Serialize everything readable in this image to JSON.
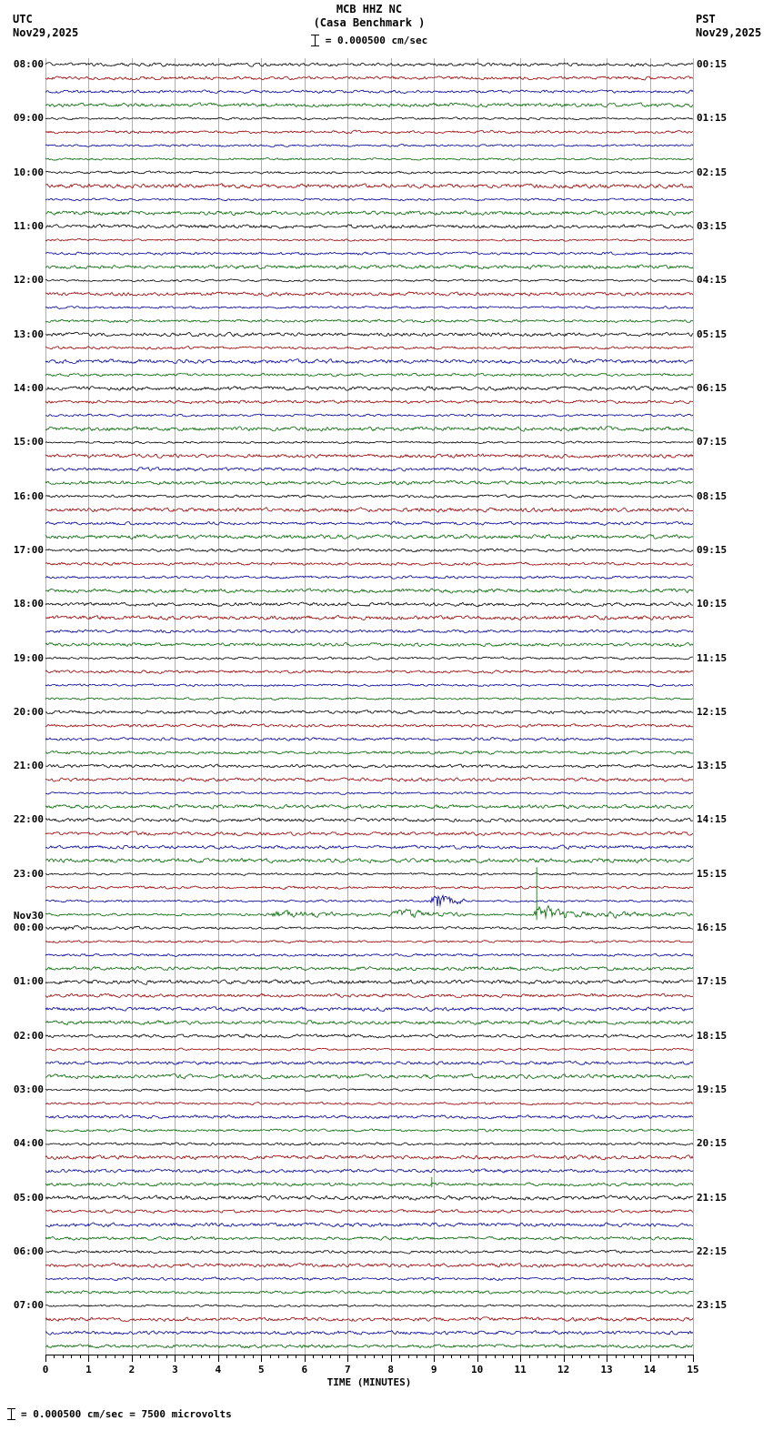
{
  "header": {
    "title": "MCB HHZ NC",
    "subtitle": "(Casa Benchmark )",
    "utc_label": "UTC",
    "utc_date": "Nov29,2025",
    "pst_label": "PST",
    "pst_date": "Nov29,2025",
    "scale_label": "= 0.000500 cm/sec"
  },
  "footer": {
    "scale_label": "= 0.000500 cm/sec =    7500 microvolts"
  },
  "chart_data": {
    "type": "line",
    "subtype": "helicorder",
    "station": "MCB HHZ NC",
    "station_name": "Casa Benchmark",
    "timezone_left": "UTC",
    "timezone_right": "PST",
    "date": "Nov29,2025",
    "minutes_per_line": 15,
    "lines_per_hour": 4,
    "num_rows": 96,
    "x_range": [
      0,
      15
    ],
    "xlabel": "TIME (MINUTES)",
    "x_ticks": [
      "0",
      "1",
      "2",
      "3",
      "4",
      "5",
      "6",
      "7",
      "8",
      "9",
      "10",
      "11",
      "12",
      "13",
      "14",
      "15"
    ],
    "grid": true,
    "grid_color": "#7a7a7a",
    "trace_color_cycle": [
      "#000000",
      "#990000",
      "#000099",
      "#006600"
    ],
    "left_labels": [
      {
        "row": 0,
        "lines": [
          "08:00"
        ]
      },
      {
        "row": 4,
        "lines": [
          "09:00"
        ]
      },
      {
        "row": 8,
        "lines": [
          "10:00"
        ]
      },
      {
        "row": 12,
        "lines": [
          "11:00"
        ]
      },
      {
        "row": 16,
        "lines": [
          "12:00"
        ]
      },
      {
        "row": 20,
        "lines": [
          "13:00"
        ]
      },
      {
        "row": 24,
        "lines": [
          "14:00"
        ]
      },
      {
        "row": 28,
        "lines": [
          "15:00"
        ]
      },
      {
        "row": 32,
        "lines": [
          "16:00"
        ]
      },
      {
        "row": 36,
        "lines": [
          "17:00"
        ]
      },
      {
        "row": 40,
        "lines": [
          "18:00"
        ]
      },
      {
        "row": 44,
        "lines": [
          "19:00"
        ]
      },
      {
        "row": 48,
        "lines": [
          "20:00"
        ]
      },
      {
        "row": 52,
        "lines": [
          "21:00"
        ]
      },
      {
        "row": 56,
        "lines": [
          "22:00"
        ]
      },
      {
        "row": 60,
        "lines": [
          "23:00"
        ]
      },
      {
        "row": 64,
        "lines": [
          "Nov30",
          "00:00"
        ]
      },
      {
        "row": 68,
        "lines": [
          "01:00"
        ]
      },
      {
        "row": 72,
        "lines": [
          "02:00"
        ]
      },
      {
        "row": 76,
        "lines": [
          "03:00"
        ]
      },
      {
        "row": 80,
        "lines": [
          "04:00"
        ]
      },
      {
        "row": 84,
        "lines": [
          "05:00"
        ]
      },
      {
        "row": 88,
        "lines": [
          "06:00"
        ]
      },
      {
        "row": 92,
        "lines": [
          "07:00"
        ]
      }
    ],
    "right_labels": [
      {
        "row": 0,
        "text": "00:15"
      },
      {
        "row": 4,
        "text": "01:15"
      },
      {
        "row": 8,
        "text": "02:15"
      },
      {
        "row": 12,
        "text": "03:15"
      },
      {
        "row": 16,
        "text": "04:15"
      },
      {
        "row": 20,
        "text": "05:15"
      },
      {
        "row": 24,
        "text": "06:15"
      },
      {
        "row": 28,
        "text": "07:15"
      },
      {
        "row": 32,
        "text": "08:15"
      },
      {
        "row": 36,
        "text": "09:15"
      },
      {
        "row": 40,
        "text": "10:15"
      },
      {
        "row": 44,
        "text": "11:15"
      },
      {
        "row": 48,
        "text": "12:15"
      },
      {
        "row": 52,
        "text": "13:15"
      },
      {
        "row": 56,
        "text": "14:15"
      },
      {
        "row": 60,
        "text": "15:15"
      },
      {
        "row": 64,
        "text": "16:15"
      },
      {
        "row": 68,
        "text": "17:15"
      },
      {
        "row": 72,
        "text": "18:15"
      },
      {
        "row": 76,
        "text": "19:15"
      },
      {
        "row": 80,
        "text": "20:15"
      },
      {
        "row": 84,
        "text": "21:15"
      },
      {
        "row": 88,
        "text": "22:15"
      },
      {
        "row": 92,
        "text": "23:15"
      }
    ],
    "events": [
      {
        "row": 62,
        "type": "burst",
        "start": 8.9,
        "end": 9.7,
        "amp": 9,
        "note": "blue burst ~23:39 UTC"
      },
      {
        "row": 63,
        "type": "burst",
        "start": 5.0,
        "end": 7.8,
        "amp": 2.2,
        "note": "elevated green noise"
      },
      {
        "row": 63,
        "type": "burst",
        "start": 7.9,
        "end": 9.8,
        "amp": 3.2,
        "note": "green activity"
      },
      {
        "row": 63,
        "type": "burst",
        "start": 11.25,
        "end": 12.6,
        "amp": 8,
        "note": "large green burst ~23:56 UTC"
      },
      {
        "row": 63,
        "type": "burst",
        "start": 12.6,
        "end": 15,
        "amp": 1.8,
        "note": "green coda"
      },
      {
        "row": 63,
        "type": "spike",
        "minute": 11.38,
        "up": 52,
        "down": 6,
        "note": "tall spike"
      },
      {
        "row": 64,
        "type": "burst",
        "start": 0,
        "end": 2.5,
        "amp": 1.2,
        "note": "slight black coda after midnight"
      },
      {
        "row": 83,
        "type": "spike",
        "minute": 8.95,
        "up": 8,
        "down": 3,
        "note": "small green spike ~04:53 UTC"
      }
    ]
  }
}
